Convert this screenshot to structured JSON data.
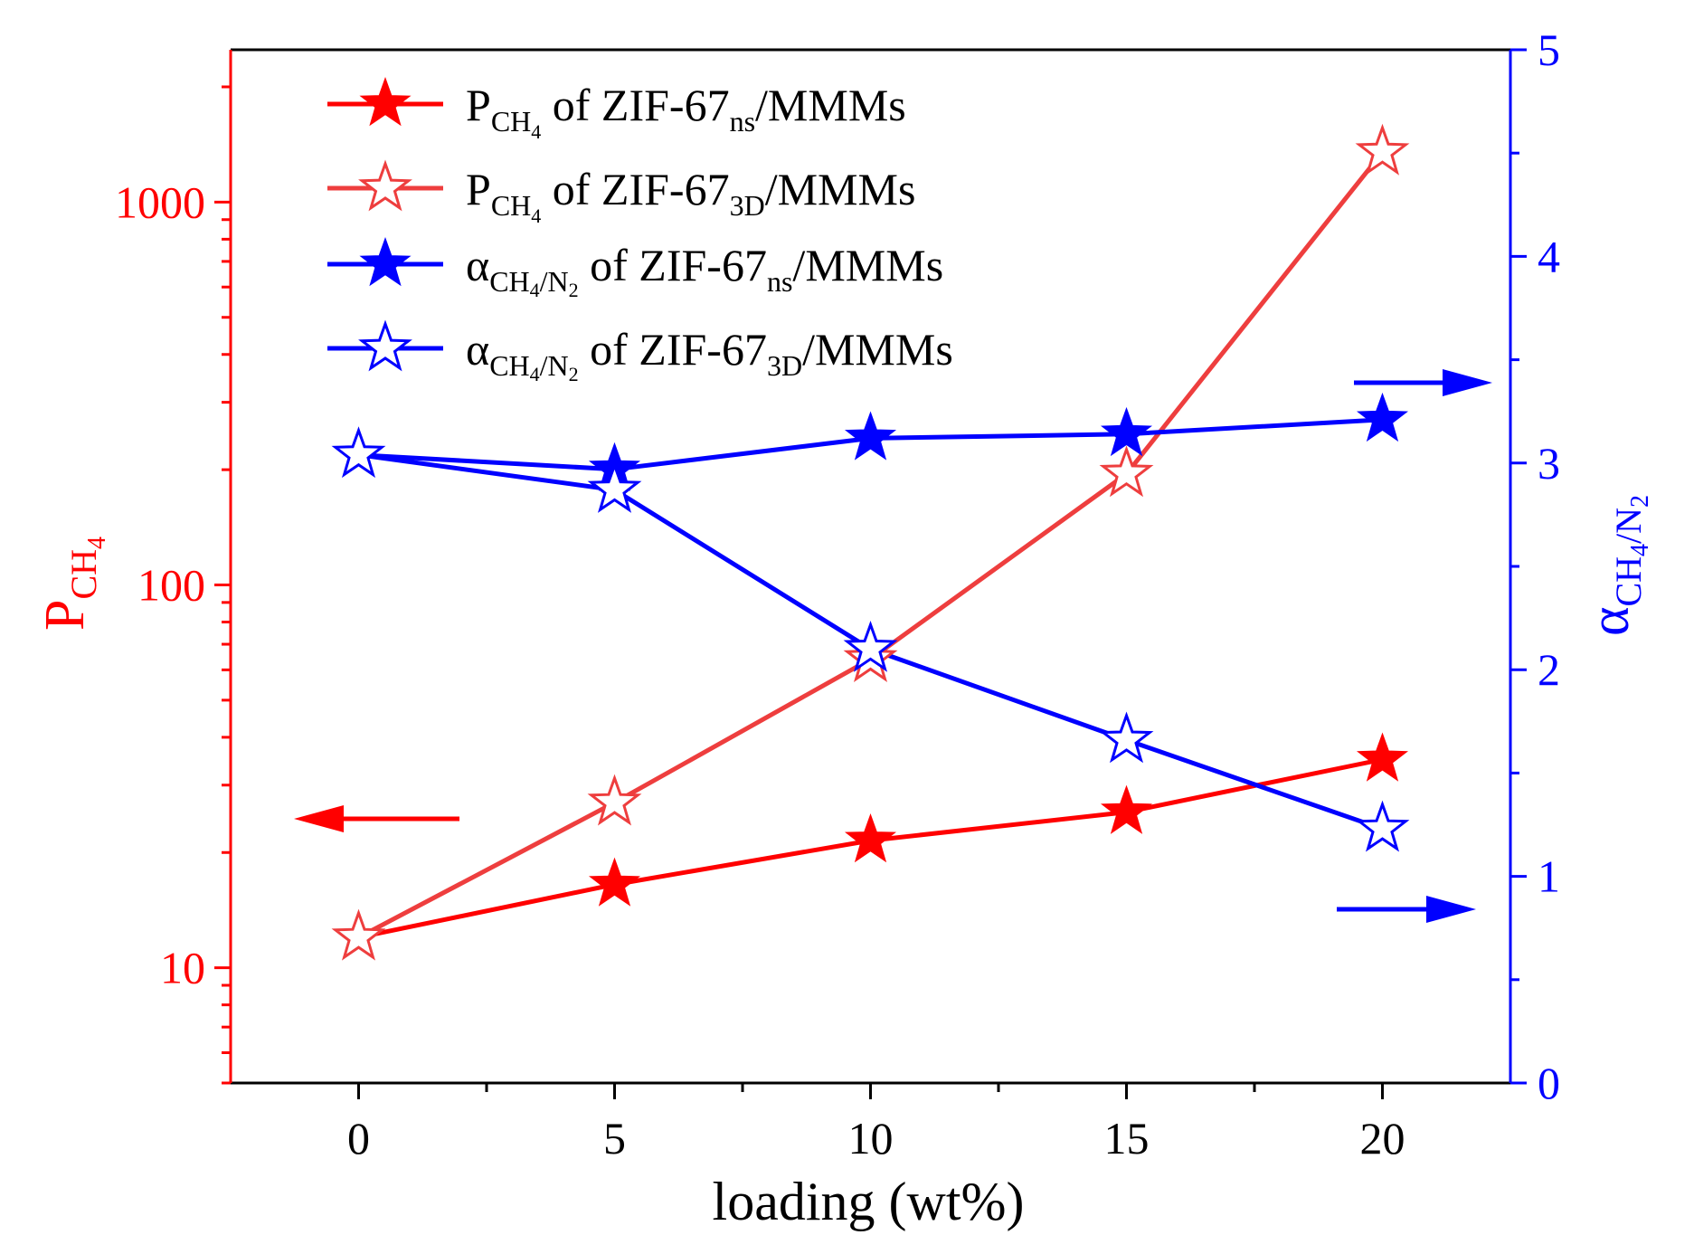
{
  "chart_data": {
    "type": "line",
    "x": [
      0,
      5,
      10,
      15,
      20
    ],
    "xlabel": "loading (wt%)",
    "xlim": [
      -2.5,
      22.5
    ],
    "x_ticks": [
      "0",
      "5",
      "10",
      "15",
      "20"
    ],
    "left_axis": {
      "label_main": "P",
      "label_sub": "CH",
      "label_subsub": "4",
      "scale": "log",
      "ylim": [
        5,
        2500
      ],
      "ticks": [
        "10",
        "100",
        "1000"
      ],
      "color": "#ff0000"
    },
    "right_axis": {
      "label_main": "α",
      "label_sub_a": "CH",
      "label_sub_b": "4",
      "label_sub_c": "/N",
      "label_sub_d": "2",
      "scale": "linear",
      "ylim": [
        0,
        5
      ],
      "ticks": [
        "0",
        "1",
        "2",
        "3",
        "4",
        "5"
      ],
      "color": "#0000ff"
    },
    "series": [
      {
        "name": "P_CH4 of ZIF-67ns/MMMs",
        "axis": "left",
        "values": [
          12,
          16.5,
          21.5,
          25.5,
          35
        ],
        "color": "#ff0000",
        "marker": "filled-star",
        "legend": {
          "l1": "P",
          "l2": "CH",
          "l3": "4",
          "l4": " of ZIF-67",
          "l5": "ns",
          "l6": "/MMMs"
        }
      },
      {
        "name": "P_CH4 of ZIF-67_3D/MMMs",
        "axis": "left",
        "values": [
          12,
          27,
          64,
          195,
          1350
        ],
        "color": "#ee3e3e",
        "marker": "open-star",
        "legend": {
          "l1": "P",
          "l2": "CH",
          "l3": "4",
          "l4": " of ZIF-67",
          "l5": "3D",
          "l6": "/MMMs"
        }
      },
      {
        "name": "α_CH4/N2 of ZIF-67ns/MMMs",
        "axis": "right",
        "values": [
          3.04,
          2.97,
          3.12,
          3.14,
          3.21
        ],
        "color": "#0000ff",
        "marker": "filled-star",
        "legend": {
          "l1": "α",
          "l2": "CH",
          "l3": "4",
          "l4": "/N",
          "l5": "2",
          "l6": " of  ZIF-67",
          "l7": "ns",
          "l8": "/MMMs"
        }
      },
      {
        "name": "α_CH4/N2 of ZIF-67_3D/MMMs",
        "axis": "right",
        "values": [
          3.04,
          2.87,
          2.1,
          1.66,
          1.23
        ],
        "color": "#0000ff",
        "marker": "open-star",
        "legend": {
          "l1": "α",
          "l2": "CH",
          "l3": "4",
          "l4": "/N",
          "l5": "2",
          "l6": " of  ZIF-67",
          "l7": "3D",
          "l8": "/MMMs"
        }
      }
    ],
    "legend_position": "top-left",
    "grid": false
  }
}
